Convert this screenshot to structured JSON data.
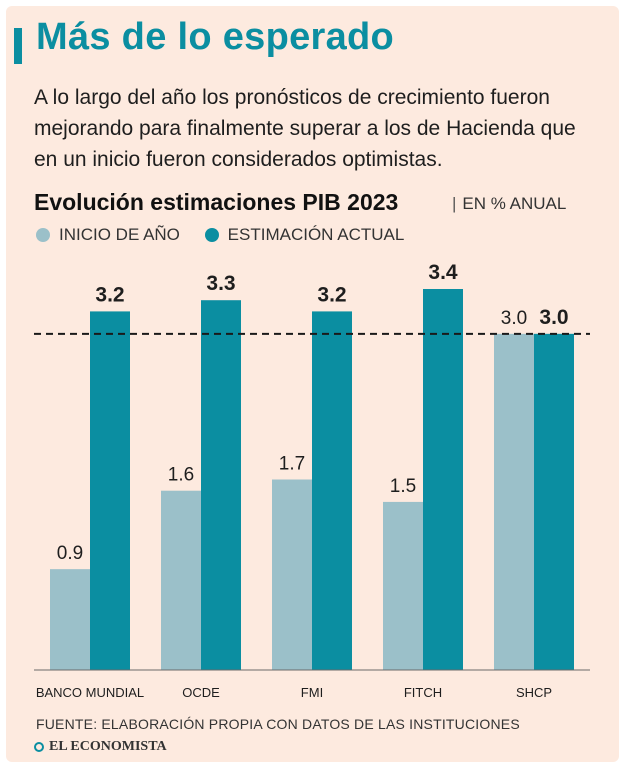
{
  "header": {
    "title": "Más de lo esperado",
    "subtitle": "A lo largo del año los pronósticos de crecimiento fueron mejorando para finalmente superar a los de Hacienda que en un inicio fueron considerados optimistas."
  },
  "footer": {
    "source": "FUENTE: ELABORACIÓN PROPIA CON DATOS DE LAS INSTITUCIONES",
    "brand": "EL ECONOMISTA"
  },
  "colors": {
    "background": "#fdeadf",
    "accent": "#0b8ea1",
    "series_start": "#9bc0c9",
    "series_current": "#0b8ea1"
  },
  "chart_data": {
    "type": "bar",
    "title": "Evolución estimaciones PIB 2023",
    "unit": "EN % ANUAL",
    "categories": [
      "BANCO MUNDIAL",
      "OCDE",
      "FMI",
      "FITCH",
      "SHCP"
    ],
    "series": [
      {
        "name": "INICIO DE AÑO",
        "values": [
          0.9,
          1.6,
          1.7,
          1.5,
          3.0
        ]
      },
      {
        "name": "ESTIMACIÓN ACTUAL",
        "values": [
          3.2,
          3.3,
          3.2,
          3.4,
          3.0
        ]
      }
    ],
    "reference_line": {
      "value": 3.0,
      "style": "dashed"
    },
    "ylim": [
      0,
      3.4
    ],
    "legend_position": "top-left",
    "xlabel": "",
    "ylabel": ""
  }
}
